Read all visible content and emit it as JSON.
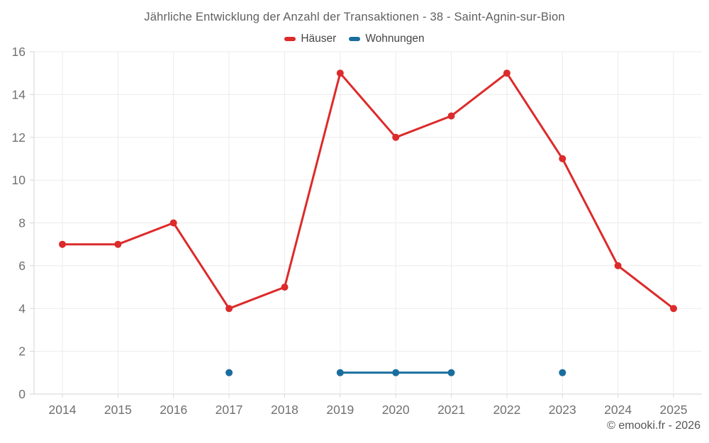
{
  "title": "Jährliche Entwicklung der Anzahl der Transaktionen - 38 - Saint-Agnin-sur-Bion",
  "footer": "© emooki.fr - 2026",
  "colors": {
    "houses_red": "#dd2a2a",
    "apartments_blue": "#1a6d9e",
    "axis": "#d6d6d6",
    "grid": "#ebebeb",
    "tick_text": "#707070"
  },
  "chart_data": {
    "type": "line",
    "categories": [
      "2014",
      "2015",
      "2016",
      "2017",
      "2018",
      "2019",
      "2020",
      "2021",
      "2022",
      "2023",
      "2024",
      "2025"
    ],
    "series": [
      {
        "name": "Häuser",
        "color": "#dd2a2a",
        "values": [
          7,
          7,
          8,
          4,
          5,
          15,
          12,
          13,
          15,
          11,
          6,
          4
        ]
      },
      {
        "name": "Wohnungen",
        "color": "#1a6d9e",
        "values": [
          null,
          null,
          null,
          1,
          null,
          1,
          1,
          1,
          null,
          1,
          null,
          null
        ]
      }
    ],
    "title": "Jährliche Entwicklung der Anzahl der Transaktionen - 38 - Saint-Agnin-sur-Bion",
    "xlabel": "",
    "ylabel": "",
    "ylim": [
      0,
      16
    ],
    "yticks": [
      0,
      2,
      4,
      6,
      8,
      10,
      12,
      14,
      16
    ],
    "grid": true,
    "legend_position": "top"
  }
}
